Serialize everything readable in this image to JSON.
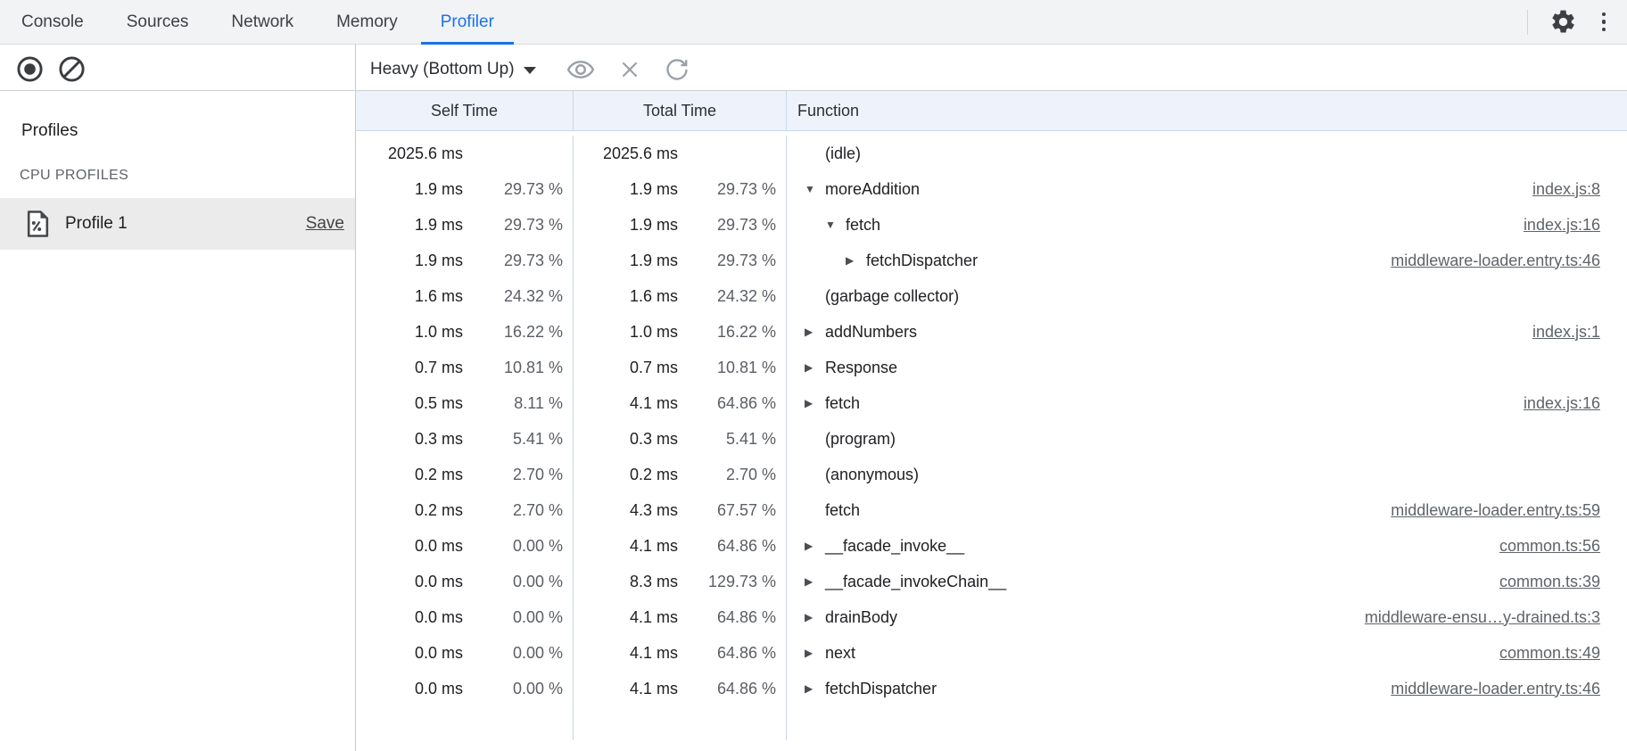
{
  "tabbar": {
    "tabs": [
      "Console",
      "Sources",
      "Network",
      "Memory",
      "Profiler"
    ],
    "active_tab": "Profiler",
    "icons": [
      "gear-icon",
      "kebab-menu-icon"
    ]
  },
  "toolbar": {
    "view_mode": "Heavy (Bottom Up)",
    "icons": [
      "record-icon",
      "clear-icon",
      "eye-icon",
      "close-icon",
      "refresh-icon"
    ]
  },
  "sidebar": {
    "profiles_heading": "Profiles",
    "section_label": "CPU PROFILES",
    "profile": {
      "name": "Profile 1",
      "save_label": "Save",
      "icon": "profile-document-icon",
      "selected": true
    }
  },
  "colors": {
    "accent": "#1a73e8",
    "grid_divider": "#c9d7ee",
    "header_bg": "#eef2fa",
    "selected_row_bg": "#ebebeb",
    "muted_text": "#5f6368"
  },
  "table": {
    "headers": {
      "self": "Self Time",
      "total": "Total Time",
      "function": "Function"
    },
    "rows": [
      {
        "self_ms": "2025.6 ms",
        "self_pct": "",
        "total_ms": "2025.6 ms",
        "total_pct": "",
        "fn": "(idle)",
        "level": 0,
        "arrow": null,
        "link": ""
      },
      {
        "self_ms": "1.9 ms",
        "self_pct": "29.73 %",
        "total_ms": "1.9 ms",
        "total_pct": "29.73 %",
        "fn": "moreAddition",
        "level": 0,
        "arrow": "down",
        "link": "index.js:8"
      },
      {
        "self_ms": "1.9 ms",
        "self_pct": "29.73 %",
        "total_ms": "1.9 ms",
        "total_pct": "29.73 %",
        "fn": "fetch",
        "level": 1,
        "arrow": "down",
        "link": "index.js:16"
      },
      {
        "self_ms": "1.9 ms",
        "self_pct": "29.73 %",
        "total_ms": "1.9 ms",
        "total_pct": "29.73 %",
        "fn": "fetchDispatcher",
        "level": 2,
        "arrow": "right",
        "link": "middleware-loader.entry.ts:46"
      },
      {
        "self_ms": "1.6 ms",
        "self_pct": "24.32 %",
        "total_ms": "1.6 ms",
        "total_pct": "24.32 %",
        "fn": "(garbage collector)",
        "level": 0,
        "arrow": null,
        "link": ""
      },
      {
        "self_ms": "1.0 ms",
        "self_pct": "16.22 %",
        "total_ms": "1.0 ms",
        "total_pct": "16.22 %",
        "fn": "addNumbers",
        "level": 0,
        "arrow": "right",
        "link": "index.js:1"
      },
      {
        "self_ms": "0.7 ms",
        "self_pct": "10.81 %",
        "total_ms": "0.7 ms",
        "total_pct": "10.81 %",
        "fn": "Response",
        "level": 0,
        "arrow": "right",
        "link": ""
      },
      {
        "self_ms": "0.5 ms",
        "self_pct": "8.11 %",
        "total_ms": "4.1 ms",
        "total_pct": "64.86 %",
        "fn": "fetch",
        "level": 0,
        "arrow": "right",
        "link": "index.js:16"
      },
      {
        "self_ms": "0.3 ms",
        "self_pct": "5.41 %",
        "total_ms": "0.3 ms",
        "total_pct": "5.41 %",
        "fn": "(program)",
        "level": 0,
        "arrow": null,
        "link": ""
      },
      {
        "self_ms": "0.2 ms",
        "self_pct": "2.70 %",
        "total_ms": "0.2 ms",
        "total_pct": "2.70 %",
        "fn": "(anonymous)",
        "level": 0,
        "arrow": null,
        "link": ""
      },
      {
        "self_ms": "0.2 ms",
        "self_pct": "2.70 %",
        "total_ms": "4.3 ms",
        "total_pct": "67.57 %",
        "fn": "fetch",
        "level": 0,
        "arrow": null,
        "link": "middleware-loader.entry.ts:59"
      },
      {
        "self_ms": "0.0 ms",
        "self_pct": "0.00 %",
        "total_ms": "4.1 ms",
        "total_pct": "64.86 %",
        "fn": "__facade_invoke__",
        "level": 0,
        "arrow": "right",
        "link": "common.ts:56"
      },
      {
        "self_ms": "0.0 ms",
        "self_pct": "0.00 %",
        "total_ms": "8.3 ms",
        "total_pct": "129.73 %",
        "fn": "__facade_invokeChain__",
        "level": 0,
        "arrow": "right",
        "link": "common.ts:39"
      },
      {
        "self_ms": "0.0 ms",
        "self_pct": "0.00 %",
        "total_ms": "4.1 ms",
        "total_pct": "64.86 %",
        "fn": "drainBody",
        "level": 0,
        "arrow": "right",
        "link": "middleware-ensu…y-drained.ts:3"
      },
      {
        "self_ms": "0.0 ms",
        "self_pct": "0.00 %",
        "total_ms": "4.1 ms",
        "total_pct": "64.86 %",
        "fn": "next",
        "level": 0,
        "arrow": "right",
        "link": "common.ts:49"
      },
      {
        "self_ms": "0.0 ms",
        "self_pct": "0.00 %",
        "total_ms": "4.1 ms",
        "total_pct": "64.86 %",
        "fn": "fetchDispatcher",
        "level": 0,
        "arrow": "right",
        "link": "middleware-loader.entry.ts:46"
      }
    ]
  }
}
